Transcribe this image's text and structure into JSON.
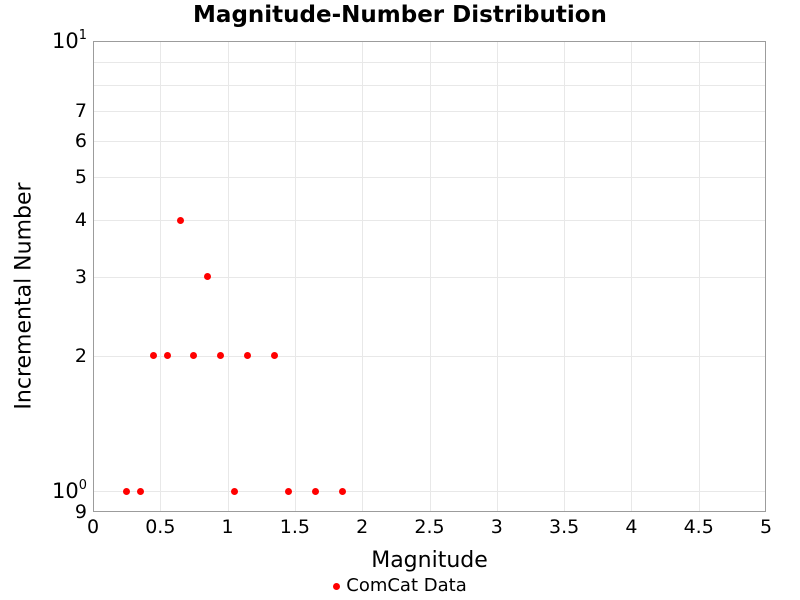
{
  "chart_data": {
    "type": "scatter",
    "title": "Magnitude-Number Distribution",
    "xlabel": "Magnitude",
    "ylabel": "Incremental Number",
    "legend": {
      "position": "bottom-center",
      "entries": [
        {
          "label": "ComCat Data",
          "marker": "dot",
          "color": "#ff0000"
        }
      ]
    },
    "x_axis": {
      "scale": "linear",
      "min": 0,
      "max": 5,
      "grid": true,
      "ticks": [
        {
          "v": 0,
          "t": "0"
        },
        {
          "v": 0.5,
          "t": "0.5"
        },
        {
          "v": 1,
          "t": "1"
        },
        {
          "v": 1.5,
          "t": "1.5"
        },
        {
          "v": 2,
          "t": "2"
        },
        {
          "v": 2.5,
          "t": "2.5"
        },
        {
          "v": 3,
          "t": "3"
        },
        {
          "v": 3.5,
          "t": "3.5"
        },
        {
          "v": 4,
          "t": "4"
        },
        {
          "v": 4.5,
          "t": "4.5"
        },
        {
          "v": 5,
          "t": "5"
        }
      ],
      "grid_values": [
        0.5,
        1,
        1.5,
        2,
        2.5,
        3,
        3.5,
        4,
        4.5
      ]
    },
    "y_axis": {
      "scale": "log",
      "min": 0.9,
      "max": 10,
      "grid": true,
      "ticks": [
        {
          "v": 10,
          "t": "10",
          "sup": "1"
        },
        {
          "v": 7,
          "t": "7"
        },
        {
          "v": 6,
          "t": "6"
        },
        {
          "v": 5,
          "t": "5"
        },
        {
          "v": 4,
          "t": "4"
        },
        {
          "v": 3,
          "t": "3"
        },
        {
          "v": 2,
          "t": "2"
        },
        {
          "v": 1,
          "t": "10",
          "sup": "0"
        },
        {
          "v": 0.9,
          "t": "9"
        }
      ],
      "grid_values": [
        1,
        2,
        3,
        4,
        5,
        6,
        7,
        8,
        9
      ]
    },
    "series": [
      {
        "name": "ComCat Data",
        "color": "#ff0000",
        "marker": "dot",
        "marker_size_px": 7,
        "points": [
          [
            0.25,
            1
          ],
          [
            0.35,
            1
          ],
          [
            0.45,
            2
          ],
          [
            0.55,
            2
          ],
          [
            0.65,
            4
          ],
          [
            0.75,
            2
          ],
          [
            0.85,
            3
          ],
          [
            0.95,
            2
          ],
          [
            1.05,
            1
          ],
          [
            1.15,
            2
          ],
          [
            1.35,
            2
          ],
          [
            1.45,
            1
          ],
          [
            1.65,
            1
          ],
          [
            1.85,
            1
          ]
        ]
      }
    ]
  },
  "colors": {
    "background": "#ffffff",
    "grid": "#e8e8e8",
    "spine": "#9c9c9c",
    "text": "#000000",
    "series_red": "#ff0000"
  }
}
